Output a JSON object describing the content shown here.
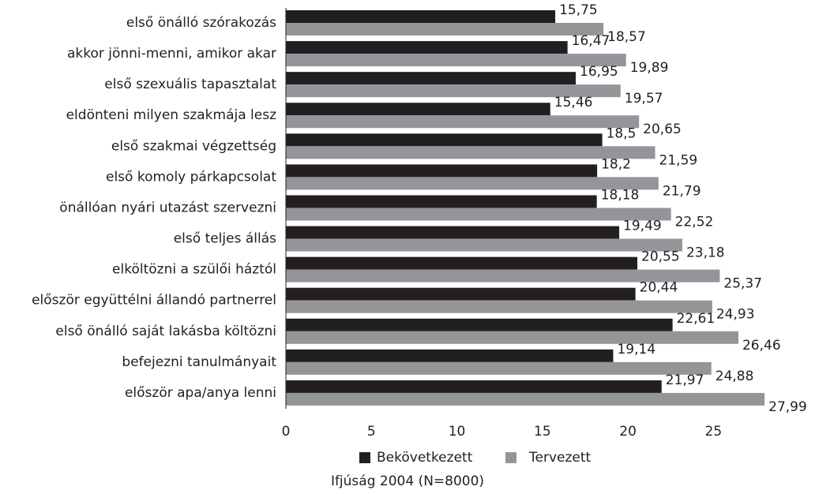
{
  "chart_data": {
    "type": "hbar",
    "categories": [
      "első önálló szórakozás",
      "akkor jönni-menni, amikor akar",
      "első szexuális tapasztalat",
      "eldönteni milyen szakmája lesz",
      "első szakmai végzettség",
      "első komoly párkapcsolat",
      "önállóan nyári utazást szervezni",
      "első teljes állás",
      "elköltözni a szülői háztól",
      "először együttélni állandó partnerrel",
      "első önálló saját lakásba költözni",
      "befejezni tanulmányait",
      "először apa/anya lenni"
    ],
    "series": [
      {
        "name": "Bekövetkezett",
        "color": "#231f20",
        "values": [
          15.75,
          16.47,
          16.95,
          15.46,
          18.5,
          18.2,
          18.18,
          19.49,
          20.55,
          20.44,
          22.61,
          19.14,
          21.97
        ],
        "value_labels": [
          "15,75",
          "16,47",
          "16,95",
          "15,46",
          "18,5",
          "18,2",
          "18,18",
          "19,49",
          "20,55",
          "20,44",
          "22,61",
          "19,14",
          "21,97"
        ]
      },
      {
        "name": "Tervezett",
        "color": "#939598",
        "values": [
          18.57,
          19.89,
          19.57,
          20.65,
          21.59,
          21.79,
          22.52,
          23.18,
          25.37,
          24.93,
          26.46,
          24.88,
          27.99
        ],
        "value_labels": [
          "18,57",
          "19,89",
          "19,57",
          "20,65",
          "21,59",
          "21,79",
          "22,52",
          "23,18",
          "25,37",
          "24,93",
          "26,46",
          "24,88",
          "27,99"
        ]
      }
    ],
    "xlim": [
      0,
      29
    ],
    "xticks": [
      0,
      5,
      10,
      15,
      20,
      25
    ],
    "caption": "Ifjúság 2004 (N=8000)"
  }
}
